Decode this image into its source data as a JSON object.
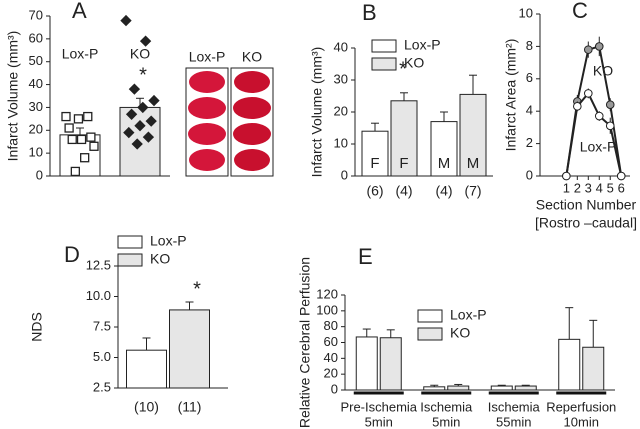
{
  "chart_data": [
    {
      "type": "bar",
      "panel": "A",
      "ylabel": "Infarct Volume (mm³)",
      "ylim": [
        0,
        70
      ],
      "yticks": [
        0,
        10,
        20,
        30,
        40,
        50,
        60,
        70
      ],
      "categories": [
        "Lox-P",
        "KO"
      ],
      "series": [
        {
          "values": [
            18,
            30
          ],
          "errors": [
            3,
            4
          ],
          "colors": [
            "#ffffff",
            "#e6e6e6"
          ],
          "points": [
            [
              26,
              26,
              25,
              21,
              17,
              16,
              16,
              13,
              8,
              2
            ],
            [
              68,
              59,
              38,
              33,
              30,
              27,
              24,
              22,
              19,
              17,
              14
            ]
          ]
        }
      ],
      "annotations": [
        "*"
      ],
      "image_labels": [
        "Lox-P",
        "KO"
      ]
    },
    {
      "type": "bar",
      "panel": "B",
      "ylabel": "Infarct Volume (mm³)",
      "ylim": [
        0,
        40
      ],
      "yticks": [
        0,
        10,
        20,
        30,
        40
      ],
      "categories": [
        "F",
        "M"
      ],
      "series": [
        {
          "name": "Lox-P",
          "color": "#ffffff",
          "values": [
            14,
            17
          ],
          "errors": [
            2.5,
            3
          ]
        },
        {
          "name": "KO",
          "color": "#e6e6e6",
          "values": [
            23.5,
            25.5
          ],
          "errors": [
            2.5,
            6
          ]
        }
      ],
      "n_labels": [
        "(6)",
        "(4)",
        "(4)",
        "(7)"
      ],
      "annotations": [
        "*"
      ]
    },
    {
      "type": "line",
      "panel": "C",
      "ylabel": "Infarct Area (mm²)",
      "xlabel": "Section Number",
      "xsublabel": "[Rostro –caudal]",
      "x": [
        1,
        2,
        3,
        4,
        5,
        6
      ],
      "xlim": [
        -1.4,
        6.8
      ],
      "xticks": [
        1,
        2,
        3,
        4,
        5,
        6
      ],
      "ylim": [
        0,
        10
      ],
      "yticks": [
        0,
        2,
        4,
        6,
        8,
        10
      ],
      "series": [
        {
          "name": "KO",
          "color": "#999999",
          "values": [
            0,
            4.6,
            7.8,
            8.0,
            4.4,
            0
          ],
          "errors": [
            0,
            0.4,
            0.5,
            0.6,
            0.4,
            0
          ]
        },
        {
          "name": "Lox-P",
          "color": "#ffffff",
          "values": [
            0,
            4.3,
            5.1,
            3.7,
            3.1,
            0
          ],
          "errors": [
            0,
            0.3,
            0.3,
            0.3,
            0.5,
            0
          ]
        }
      ]
    },
    {
      "type": "bar",
      "panel": "D",
      "ylabel": "NDS",
      "ylim": [
        2.5,
        12.5
      ],
      "yticks": [
        2.5,
        {
          "value": 5,
          "label": "5.0"
        },
        7.5,
        {
          "value": 10,
          "label": "10.0"
        },
        12.5
      ],
      "series": [
        {
          "name": "Lox-P",
          "color": "#ffffff",
          "values": [
            5.6
          ],
          "errors": [
            1.0
          ]
        },
        {
          "name": "KO",
          "color": "#e6e6e6",
          "values": [
            8.9
          ],
          "errors": [
            0.65
          ]
        }
      ],
      "n_labels": [
        "(10)",
        "(11)"
      ],
      "annotations": [
        "*"
      ]
    },
    {
      "type": "bar",
      "panel": "E",
      "ylabel": "Relative Cerebral Perfusion",
      "ylim": [
        0,
        120
      ],
      "yticks": [
        0,
        20,
        40,
        60,
        80,
        100,
        120
      ],
      "categories": [
        "Pre-Ischemia",
        "Ischemia",
        "Ischemia",
        "Reperfusion"
      ],
      "category_sublabels": [
        "5min",
        "5min",
        "55min",
        "10min"
      ],
      "series": [
        {
          "name": "Lox-P",
          "color": "#ffffff",
          "values": [
            67,
            4,
            5,
            64
          ],
          "errors": [
            10,
            2,
            1,
            40
          ]
        },
        {
          "name": "KO",
          "color": "#e6e6e6",
          "values": [
            66,
            5,
            5,
            54
          ],
          "errors": [
            10,
            2,
            1,
            34
          ]
        }
      ]
    }
  ]
}
